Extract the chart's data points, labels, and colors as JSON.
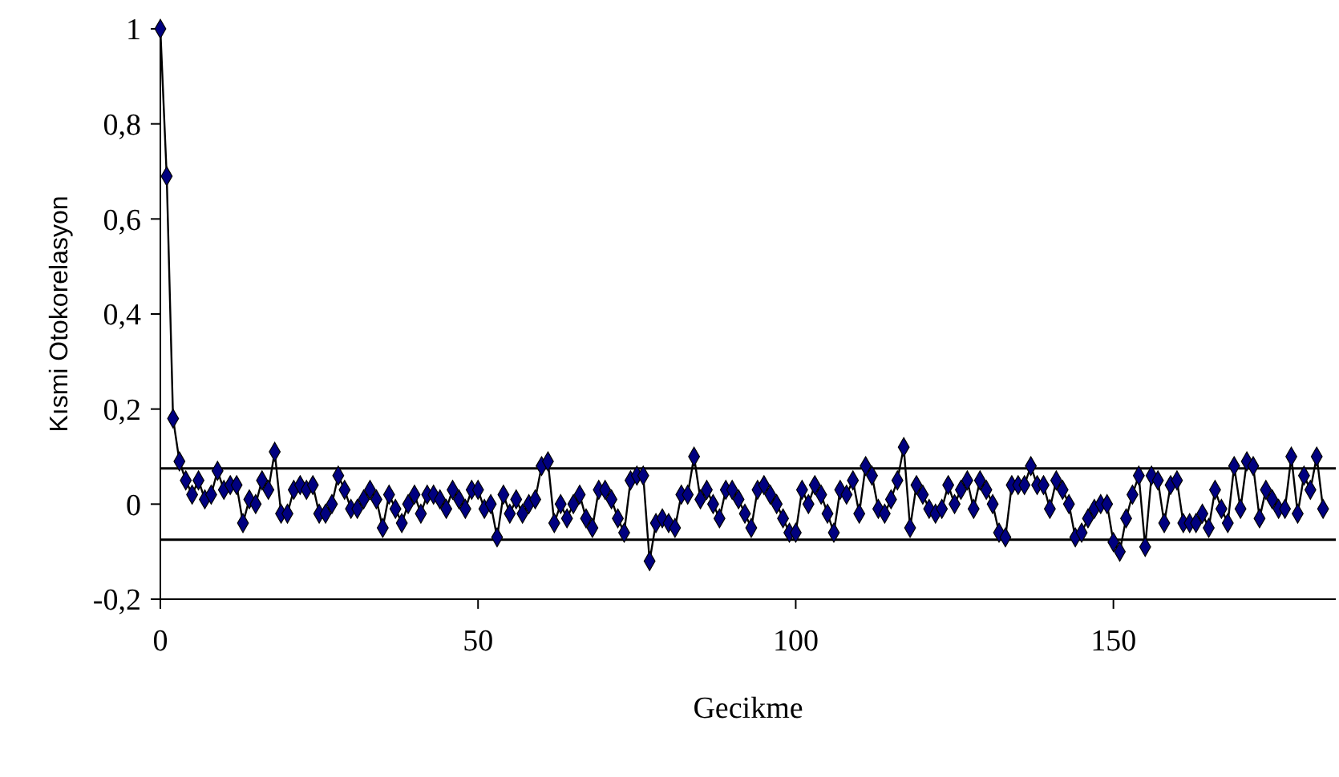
{
  "chart_data": {
    "type": "line",
    "xlabel": "Gecikme",
    "ylabel": "Kısmi Otokorelasyon",
    "x": [
      0,
      1,
      2,
      3,
      4,
      5,
      6,
      7,
      8,
      9,
      10,
      11,
      12,
      13,
      14,
      15,
      16,
      17,
      18,
      19,
      20,
      21,
      22,
      23,
      24,
      25,
      26,
      27,
      28,
      29,
      30,
      31,
      32,
      33,
      34,
      35,
      36,
      37,
      38,
      39,
      40,
      41,
      42,
      43,
      44,
      45,
      46,
      47,
      48,
      49,
      50,
      51,
      52,
      53,
      54,
      55,
      56,
      57,
      58,
      59,
      60,
      61,
      62,
      63,
      64,
      65,
      66,
      67,
      68,
      69,
      70,
      71,
      72,
      73,
      74,
      75,
      76,
      77,
      78,
      79,
      80,
      81,
      82,
      83,
      84,
      85,
      86,
      87,
      88,
      89,
      90,
      91,
      92,
      93,
      94,
      95,
      96,
      97,
      98,
      99,
      100,
      101,
      102,
      103,
      104,
      105,
      106,
      107,
      108,
      109,
      110,
      111,
      112,
      113,
      114,
      115,
      116,
      117,
      118,
      119,
      120,
      121,
      122,
      123,
      124,
      125,
      126,
      127,
      128,
      129,
      130,
      131,
      132,
      133,
      134,
      135,
      136,
      137,
      138,
      139,
      140,
      141,
      142,
      143,
      144,
      145,
      146,
      147,
      148,
      149,
      150,
      151,
      152,
      153,
      154,
      155,
      156,
      157,
      158,
      159,
      160,
      161,
      162,
      163,
      164,
      165,
      166,
      167,
      168,
      169,
      170,
      171,
      172,
      173,
      174,
      175,
      176,
      177,
      178,
      179,
      180,
      181,
      182,
      183
    ],
    "series": [
      {
        "color": "#000080",
        "values": [
          1,
          0.69,
          0.18,
          0.09,
          0.05,
          0.02,
          0.05,
          0.01,
          0.02,
          0.07,
          0.03,
          0.04,
          0.04,
          -0.04,
          0.01,
          0,
          0.05,
          0.03,
          0.11,
          -0.02,
          -0.02,
          0.03,
          0.04,
          0.03,
          0.04,
          -0.02,
          -0.02,
          0,
          0.06,
          0.03,
          -0.01,
          -0.01,
          0.01,
          0.03,
          0.01,
          -0.05,
          0.02,
          -0.01,
          -0.04,
          0,
          0.02,
          -0.02,
          0.02,
          0.02,
          0.01,
          -0.01,
          0.03,
          0.01,
          -0.01,
          0.03,
          0.03,
          -0.01,
          0,
          -0.07,
          0.02,
          -0.02,
          0.01,
          -0.02,
          0,
          0.01,
          0.08,
          0.09,
          -0.04,
          0,
          -0.03,
          0,
          0.02,
          -0.03,
          -0.05,
          0.03,
          0.03,
          0.01,
          -0.03,
          -0.06,
          0.05,
          0.06,
          0.06,
          -0.12,
          -0.04,
          -0.03,
          -0.04,
          -0.05,
          0.02,
          0.02,
          0.1,
          0.01,
          0.03,
          0,
          -0.03,
          0.03,
          0.03,
          0.01,
          -0.02,
          -0.05,
          0.03,
          0.04,
          0.02,
          0,
          -0.03,
          -0.06,
          -0.06,
          0.03,
          0,
          0.04,
          0.02,
          -0.02,
          -0.06,
          0.03,
          0.02,
          0.05,
          -0.02,
          0.08,
          0.06,
          -0.01,
          -0.02,
          0.01,
          0.05,
          0.12,
          -0.05,
          0.04,
          0.02,
          -0.01,
          -0.02,
          -0.01,
          0.04,
          0,
          0.03,
          0.05,
          -0.01,
          0.05,
          0.03,
          0,
          -0.06,
          -0.07,
          0.04,
          0.04,
          0.04,
          0.08,
          0.04,
          0.04,
          -0.01,
          0.05,
          0.03,
          0,
          -0.07,
          -0.06,
          -0.03,
          -0.01,
          0,
          0,
          -0.08,
          -0.1,
          -0.03,
          0.02,
          0.06,
          -0.09,
          0.06,
          0.05,
          -0.04,
          0.04,
          0.05,
          -0.04,
          -0.04,
          -0.04,
          -0.02,
          -0.05,
          0.03,
          -0.01,
          -0.04,
          0.08,
          -0.01,
          0.09,
          0.08,
          -0.03,
          0.03,
          0.01,
          -0.01,
          -0.01,
          0.1,
          -0.02,
          0.06,
          0.03,
          0.1,
          -0.01
        ]
      }
    ],
    "xlim": [
      0,
      185
    ],
    "xticks": [
      0,
      50,
      100,
      150
    ],
    "ylim": [
      -0.2,
      1
    ],
    "yticks": [
      {
        "value": -0.2,
        "label": "-0,2"
      },
      0,
      {
        "value": 0.2,
        "label": "0,2"
      },
      {
        "value": 0.4,
        "label": "0,4"
      },
      {
        "value": 0.6,
        "label": "0,6"
      },
      {
        "value": 0.8,
        "label": "0,8"
      },
      1
    ],
    "ref_lines": [
      {
        "axis": "y",
        "value": 0.075,
        "color": "#000000"
      },
      {
        "axis": "y",
        "value": -0.075,
        "color": "#000000"
      }
    ],
    "marker": "diamond",
    "line_style": "solid"
  }
}
